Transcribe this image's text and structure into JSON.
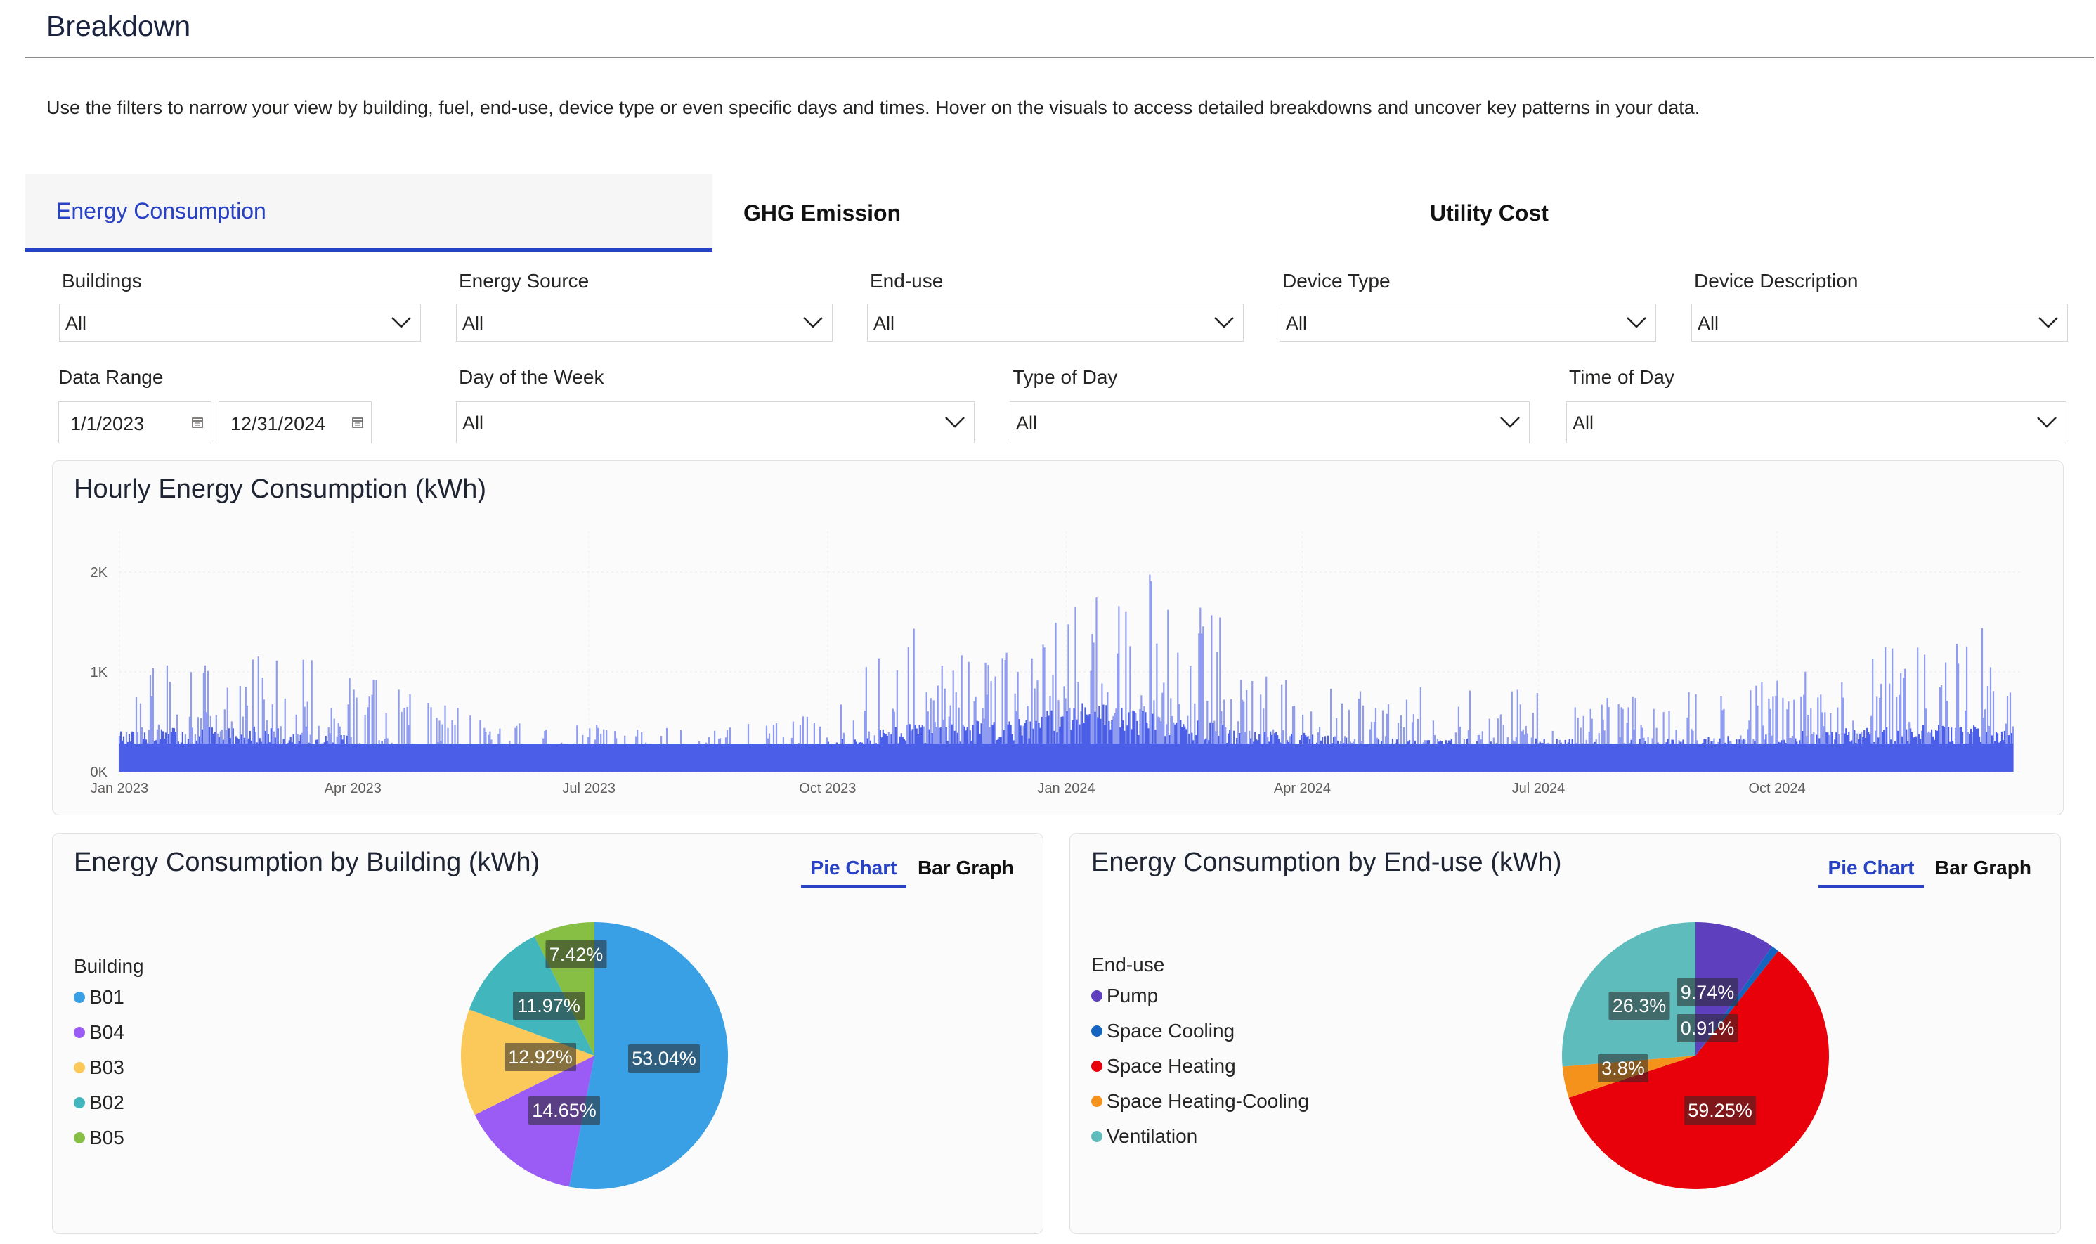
{
  "page": {
    "title": "Breakdown",
    "intro": "Use the filters to narrow your view by building, fuel, end-use, device type or even specific days and times.  Hover on the visuals to access detailed breakdowns and uncover key patterns in your data."
  },
  "tabs": [
    {
      "label": "Energy Consumption",
      "active": true
    },
    {
      "label": "GHG Emission",
      "active": false
    },
    {
      "label": "Utility Cost",
      "active": false
    }
  ],
  "filters": {
    "buildings": {
      "label": "Buildings",
      "value": "All"
    },
    "energy_source": {
      "label": "Energy Source",
      "value": "All"
    },
    "end_use": {
      "label": "End-use",
      "value": "All"
    },
    "device_type": {
      "label": "Device Type",
      "value": "All"
    },
    "device_description": {
      "label": "Device Description",
      "value": "All"
    },
    "data_range": {
      "label": "Data Range",
      "start": "1/1/2023",
      "end": "12/31/2024"
    },
    "day_of_week": {
      "label": "Day of the Week",
      "value": "All"
    },
    "type_of_day": {
      "label": "Type of Day",
      "value": "All"
    },
    "time_of_day": {
      "label": "Time of Day",
      "value": "All"
    }
  },
  "hourly_chart": {
    "title": "Hourly Energy Consumption (kWh)",
    "y_ticks": [
      "0K",
      "1K",
      "2K"
    ],
    "x_ticks": [
      "Jan 2023",
      "Apr 2023",
      "Jul 2023",
      "Oct 2023",
      "Jan 2024",
      "Apr 2024",
      "Jul 2024",
      "Oct 2024"
    ],
    "bar_color": "#4a5ee8"
  },
  "building_chart": {
    "title": "Energy Consumption by Building (kWh)",
    "toggle": {
      "pie": "Pie Chart",
      "bar": "Bar Graph",
      "active": "pie"
    },
    "legend_title": "Building",
    "legend": [
      {
        "name": "B01",
        "color": "#3aa0e6"
      },
      {
        "name": "B04",
        "color": "#9a5cf5"
      },
      {
        "name": "B03",
        "color": "#fbc95a"
      },
      {
        "name": "B02",
        "color": "#41b6bd"
      },
      {
        "name": "B05",
        "color": "#86bf44"
      }
    ]
  },
  "enduse_chart": {
    "title": "Energy Consumption by End-use (kWh)",
    "toggle": {
      "pie": "Pie Chart",
      "bar": "Bar Graph",
      "active": "pie"
    },
    "legend_title": "End-use",
    "legend": [
      {
        "name": "Pump",
        "color": "#5e3fbe"
      },
      {
        "name": "Space Cooling",
        "color": "#1565c0"
      },
      {
        "name": "Space Heating",
        "color": "#e8000b"
      },
      {
        "name": "Space Heating-Cooling",
        "color": "#f5921b"
      },
      {
        "name": "Ventilation",
        "color": "#5fbcbc"
      }
    ]
  },
  "chart_data": [
    {
      "type": "bar",
      "title": "Hourly Energy Consumption (kWh)",
      "x_range": [
        "2023-01-01",
        "2024-12-31"
      ],
      "ylim": [
        0,
        2000
      ],
      "series_shape": [
        {
          "date": "2023-01-01",
          "base": 350,
          "peak": 1000
        },
        {
          "date": "2023-03-01",
          "base": 400,
          "peak": 1300
        },
        {
          "date": "2023-04-15",
          "base": 250,
          "peak": 900
        },
        {
          "date": "2023-06-01",
          "base": 170,
          "peak": 500
        },
        {
          "date": "2023-08-01",
          "base": 170,
          "peak": 450
        },
        {
          "date": "2023-09-15",
          "base": 180,
          "peak": 500
        },
        {
          "date": "2023-11-01",
          "base": 400,
          "peak": 1450
        },
        {
          "date": "2023-12-15",
          "base": 450,
          "peak": 1250
        },
        {
          "date": "2024-01-08",
          "base": 600,
          "peak": 1750
        },
        {
          "date": "2024-02-15",
          "base": 450,
          "peak": 2100
        },
        {
          "date": "2024-03-15",
          "base": 350,
          "peak": 1000
        },
        {
          "date": "2024-05-01",
          "base": 280,
          "peak": 850
        },
        {
          "date": "2024-06-15",
          "base": 280,
          "peak": 850
        },
        {
          "date": "2024-08-01",
          "base": 270,
          "peak": 800
        },
        {
          "date": "2024-09-15",
          "base": 300,
          "peak": 850
        },
        {
          "date": "2024-11-01",
          "base": 380,
          "peak": 1200
        },
        {
          "date": "2024-12-31",
          "base": 400,
          "peak": 1500
        }
      ],
      "bar_color": "#4a5ee8"
    },
    {
      "type": "pie",
      "title": "Energy Consumption by Building (kWh)",
      "slices": [
        {
          "label": "B01",
          "value": 53.04,
          "display": "53.04%",
          "color": "#3aa0e6"
        },
        {
          "label": "B04",
          "value": 14.65,
          "display": "14.65%",
          "color": "#9a5cf5"
        },
        {
          "label": "B03",
          "value": 12.92,
          "display": "12.92%",
          "color": "#fbc95a"
        },
        {
          "label": "B02",
          "value": 11.97,
          "display": "11.97%",
          "color": "#41b6bd"
        },
        {
          "label": "B05",
          "value": 7.42,
          "display": "7.42%",
          "color": "#86bf44"
        }
      ],
      "legend_position": "left"
    },
    {
      "type": "pie",
      "title": "Energy Consumption by End-use (kWh)",
      "slices": [
        {
          "label": "Pump",
          "value": 9.74,
          "display": "9.74%",
          "color": "#5e3fbe"
        },
        {
          "label": "Space Cooling",
          "value": 0.91,
          "display": "0.91%",
          "color": "#1565c0"
        },
        {
          "label": "Space Heating",
          "value": 59.25,
          "display": "59.25%",
          "color": "#e8000b"
        },
        {
          "label": "Space Heating-Cooling",
          "value": 3.8,
          "display": "3.8%",
          "color": "#f5921b"
        },
        {
          "label": "Ventilation",
          "value": 26.3,
          "display": "26.3%",
          "color": "#5fbcbc"
        }
      ],
      "legend_position": "left"
    }
  ]
}
